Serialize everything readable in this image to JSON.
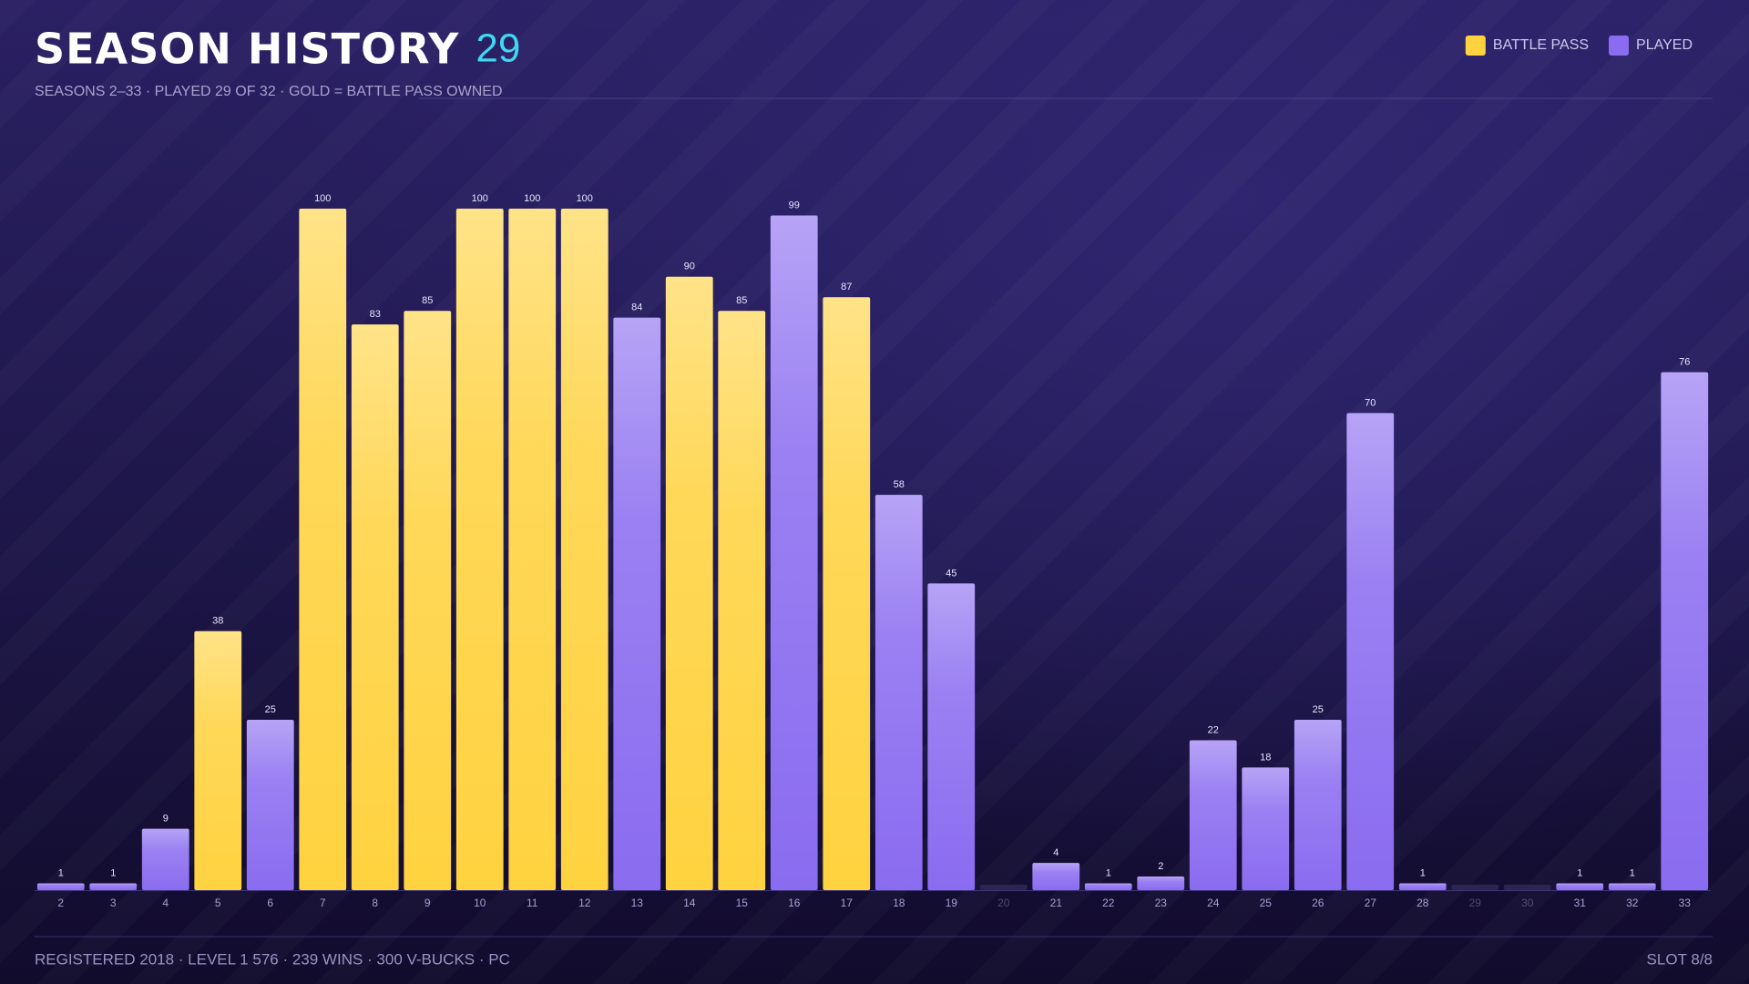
{
  "chart_data": {
    "type": "bar",
    "title": "SEASON HISTORY",
    "title_count": "29",
    "subtitle": "SEASONS 2–33 · PLAYED 29 OF 32 · GOLD = BATTLE PASS OWNED",
    "categories": [
      "2",
      "3",
      "4",
      "5",
      "6",
      "7",
      "8",
      "9",
      "10",
      "11",
      "12",
      "13",
      "14",
      "15",
      "16",
      "17",
      "18",
      "19",
      "20",
      "21",
      "22",
      "23",
      "24",
      "25",
      "26",
      "27",
      "28",
      "29",
      "30",
      "31",
      "32",
      "33"
    ],
    "series": [
      {
        "name": "BATTLE PASS",
        "color": "#ffd23f",
        "values": [
          null,
          null,
          null,
          38,
          null,
          100,
          83,
          85,
          100,
          100,
          100,
          null,
          90,
          85,
          null,
          87,
          null,
          null,
          null,
          null,
          null,
          null,
          null,
          null,
          null,
          null,
          null,
          null,
          null,
          null,
          null,
          null
        ]
      },
      {
        "name": "PLAYED",
        "color": "#8a6cf0",
        "values": [
          1,
          1,
          9,
          null,
          25,
          null,
          null,
          null,
          null,
          null,
          null,
          84,
          null,
          null,
          99,
          null,
          58,
          45,
          null,
          4,
          1,
          2,
          22,
          18,
          25,
          70,
          1,
          null,
          null,
          1,
          1,
          76
        ]
      }
    ],
    "ylim": [
      0,
      100
    ],
    "footer": "REGISTERED 2018 · LEVEL 1 576 · 239 WINS · 300 V-BUCKS · PC",
    "footer_right": "SLOT 8/8"
  }
}
